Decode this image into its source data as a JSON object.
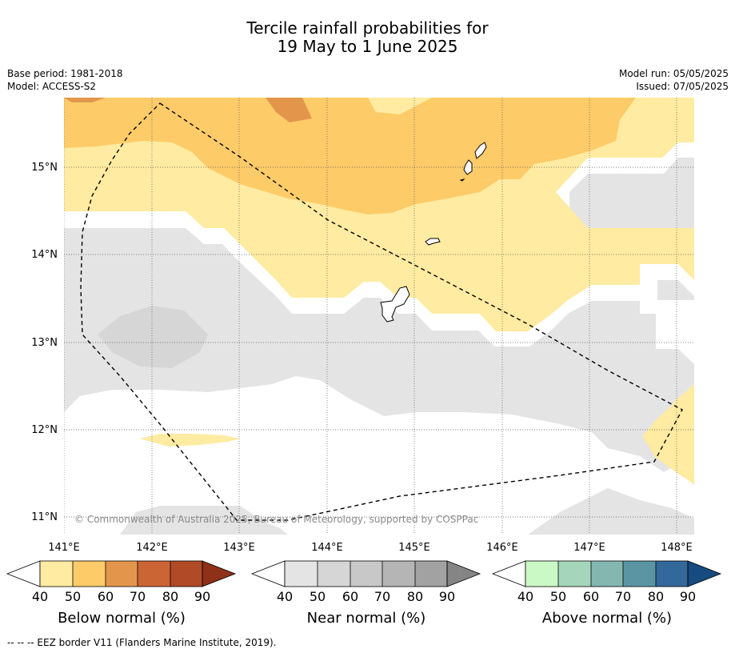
{
  "title": {
    "line1": "Tercile rainfall probabilities for",
    "line2": "19 May to 1 June 2025"
  },
  "meta": {
    "base_period": "Base period: 1981-2018",
    "model": "Model: ACCESS-S2",
    "model_run": "Model run: 05/05/2025",
    "issued": "Issued: 07/05/2025"
  },
  "map": {
    "lon_labels": [
      "141°E",
      "142°E",
      "143°E",
      "144°E",
      "145°E",
      "146°E",
      "147°E",
      "148°E"
    ],
    "lat_labels": [
      "15°N",
      "14°N",
      "13°N",
      "12°N",
      "11°N"
    ],
    "copyright": "© Commonwealth of Australia 2025, Bureau of Meteorology, supported by COSPPac"
  },
  "legends": [
    {
      "label": "Below normal (%)",
      "ticks": [
        "40",
        "50",
        "60",
        "70",
        "80",
        "90"
      ],
      "colors": [
        "#ffeba1",
        "#fdcb68",
        "#e3964b",
        "#cc6534",
        "#b04a27",
        "#8e3118"
      ]
    },
    {
      "label": "Near normal (%)",
      "ticks": [
        "40",
        "50",
        "60",
        "70",
        "80",
        "90"
      ],
      "colors": [
        "#e4e4e4",
        "#d6d6d6",
        "#c8c8c8",
        "#b5b5b5",
        "#a2a2a2",
        "#858585"
      ]
    },
    {
      "label": "Above normal (%)",
      "ticks": [
        "40",
        "50",
        "60",
        "70",
        "80",
        "90"
      ],
      "colors": [
        "#cbf9c6",
        "#a5d6bb",
        "#84b7b0",
        "#5b95a4",
        "#33699a",
        "#174b7f"
      ]
    }
  ],
  "footnote": "--  --  -- EEZ border V11 (Flanders Marine Institute, 2019)."
}
